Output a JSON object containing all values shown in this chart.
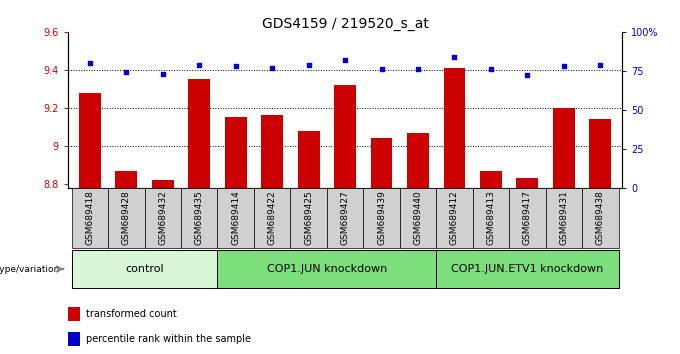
{
  "title": "GDS4159 / 219520_s_at",
  "samples": [
    "GSM689418",
    "GSM689428",
    "GSM689432",
    "GSM689435",
    "GSM689414",
    "GSM689422",
    "GSM689425",
    "GSM689427",
    "GSM689439",
    "GSM689440",
    "GSM689412",
    "GSM689413",
    "GSM689417",
    "GSM689431",
    "GSM689438"
  ],
  "transformed_count": [
    9.28,
    8.87,
    8.82,
    9.35,
    9.15,
    9.16,
    9.08,
    9.32,
    9.04,
    9.07,
    9.41,
    8.87,
    8.83,
    9.2,
    9.14
  ],
  "percentile_rank": [
    80,
    74,
    73,
    79,
    78,
    77,
    79,
    82,
    76,
    76,
    84,
    76,
    72,
    78,
    79
  ],
  "ylim_left": [
    8.78,
    9.6
  ],
  "ylim_right": [
    0,
    100
  ],
  "yticks_left": [
    8.8,
    9.0,
    9.2,
    9.4,
    9.6
  ],
  "ytick_labels_left": [
    "8.8",
    "9",
    "9.2",
    "9.4",
    "9.6"
  ],
  "yticks_right": [
    0,
    25,
    50,
    75,
    100
  ],
  "ytick_labels_right": [
    "0",
    "25",
    "50",
    "75",
    "100%"
  ],
  "hlines": [
    9.0,
    9.2,
    9.4
  ],
  "groups": [
    {
      "label": "control",
      "start": 0,
      "end": 4,
      "color": "#d8f5d8"
    },
    {
      "label": "COP1.JUN knockdown",
      "start": 4,
      "end": 10,
      "color": "#7cdf7c"
    },
    {
      "label": "COP1.JUN.ETV1 knockdown",
      "start": 10,
      "end": 15,
      "color": "#7cdf7c"
    }
  ],
  "bar_color": "#cc0000",
  "dot_color": "#0000cc",
  "bar_width": 0.6,
  "base_value": 8.78,
  "legend_items": [
    {
      "label": "transformed count",
      "color": "#cc0000"
    },
    {
      "label": "percentile rank within the sample",
      "color": "#0000cc"
    }
  ],
  "genotype_label": "genotype/variation",
  "cell_bg": "#d0d0d0",
  "fig_width": 6.8,
  "fig_height": 3.54,
  "dpi": 100,
  "title_fontsize": 10,
  "tick_fontsize": 7,
  "sample_fontsize": 6.5,
  "group_fontsize": 8
}
